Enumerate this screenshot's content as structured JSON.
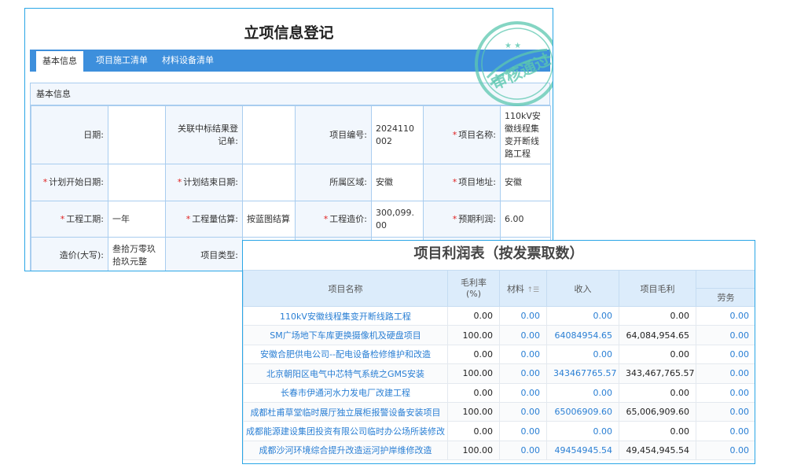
{
  "form": {
    "title": "立项信息登记",
    "tabs": [
      "基本信息",
      "项目施工清单",
      "材料设备清单"
    ],
    "section_title": "基本信息",
    "rows": [
      [
        {
          "label": "日期:",
          "req": false,
          "value": ""
        },
        {
          "label": "关联中标结果登记单:",
          "req": false,
          "value": ""
        },
        {
          "label": "项目编号:",
          "req": false,
          "value": "2024110002"
        },
        {
          "label": "项目名称:",
          "req": true,
          "value": "110kV安徽线程集变开断线路工程"
        }
      ],
      [
        {
          "label": "计划开始日期:",
          "req": true,
          "value": ""
        },
        {
          "label": "计划结束日期:",
          "req": true,
          "value": ""
        },
        {
          "label": "所属区域:",
          "req": false,
          "value": "安徽"
        },
        {
          "label": "项目地址:",
          "req": true,
          "value": "安徽"
        }
      ],
      [
        {
          "label": "工程工期:",
          "req": true,
          "value": "一年"
        },
        {
          "label": "工程量估算:",
          "req": true,
          "value": "按蓝图结算"
        },
        {
          "label": "工程造价:",
          "req": true,
          "value": "300,099.00"
        },
        {
          "label": "预期利润:",
          "req": true,
          "value": "6.00"
        }
      ],
      [
        {
          "label": "造价(大写):",
          "req": false,
          "value": "叁拾万零玖拾玖元整"
        },
        {
          "label": "项目类型:",
          "req": false,
          "value": ""
        },
        {
          "label": "",
          "req": false,
          "value": ""
        },
        {
          "label": "",
          "req": false,
          "value": ""
        }
      ]
    ]
  },
  "stamp": {
    "text": "审核通过",
    "color": "#5cc8b0"
  },
  "profit": {
    "title": "项目利润表（按发票取数）",
    "headers": {
      "name": "项目名称",
      "rate": "毛利率(%)",
      "material": "材料",
      "income": "收入",
      "gross": "项目毛利",
      "labor": "劳务"
    },
    "rows": [
      [
        "110kV安徽线程集变开断线路工程",
        "0.00",
        "0.00",
        "0.00",
        "0.00",
        "0.00"
      ],
      [
        "SM广场地下车库更换摄像机及硬盘项目",
        "100.00",
        "0.00",
        "64084954.65",
        "64,084,954.65",
        "0.00"
      ],
      [
        "安徽合肥供电公司--配电设备检修维护和改造",
        "0.00",
        "0.00",
        "0.00",
        "0.00",
        "0.00"
      ],
      [
        "北京朝阳区电气中芯特气系统之GMS安装",
        "100.00",
        "0.00",
        "343467765.57",
        "343,467,765.57",
        "0.00"
      ],
      [
        "长春市伊通河水力发电厂改建工程",
        "0.00",
        "0.00",
        "0.00",
        "0.00",
        "0.00"
      ],
      [
        "成都杜甫草堂临时展厅独立展柜报警设备安装项目",
        "100.00",
        "0.00",
        "65006909.60",
        "65,006,909.60",
        "0.00"
      ],
      [
        "成都能源建设集团投资有限公司临时办公场所装修改",
        "0.00",
        "0.00",
        "0.00",
        "0.00",
        "0.00"
      ],
      [
        "成都沙河环境综合提升改造运河护岸维修改造",
        "100.00",
        "0.00",
        "49454945.54",
        "49,454,945.54",
        "0.00"
      ]
    ],
    "link_color": "#2a7fd4"
  }
}
